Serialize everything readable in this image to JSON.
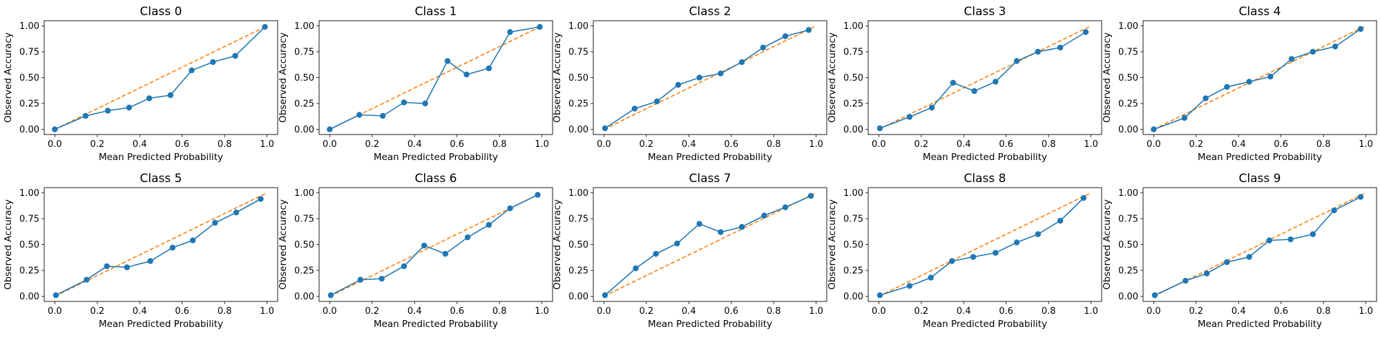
{
  "colors": {
    "series": "#1f77b4",
    "reference": "#ff7f0e",
    "axes": "#000000",
    "background": "#ffffff"
  },
  "chart_data": [
    {
      "type": "line",
      "title": "Class 0",
      "xlabel": "Mean Predicted Probability",
      "ylabel": "Observed Accuracy",
      "xlim": [
        -0.05,
        1.05
      ],
      "ylim": [
        -0.05,
        1.05
      ],
      "xticks": [
        "0.0",
        "0.2",
        "0.4",
        "0.6",
        "0.8",
        "1.0"
      ],
      "yticks": [
        "0.00",
        "0.25",
        "0.50",
        "0.75",
        "1.00"
      ],
      "reference_line": [
        [
          0,
          0
        ],
        [
          1,
          1
        ]
      ],
      "x": [
        0.0,
        0.145,
        0.25,
        0.35,
        0.445,
        0.545,
        0.645,
        0.745,
        0.85,
        0.99
      ],
      "y": [
        0.0,
        0.13,
        0.18,
        0.21,
        0.3,
        0.33,
        0.57,
        0.65,
        0.71,
        0.99
      ]
    },
    {
      "type": "line",
      "title": "Class 1",
      "xlabel": "Mean Predicted Probability",
      "ylabel": "Observed Accuracy",
      "xlim": [
        -0.05,
        1.05
      ],
      "ylim": [
        -0.05,
        1.05
      ],
      "xticks": [
        "0.0",
        "0.2",
        "0.4",
        "0.6",
        "0.8",
        "1.0"
      ],
      "yticks": [
        "0.00",
        "0.25",
        "0.50",
        "0.75",
        "1.00"
      ],
      "reference_line": [
        [
          0,
          0
        ],
        [
          1,
          1
        ]
      ],
      "x": [
        0.0,
        0.14,
        0.25,
        0.35,
        0.45,
        0.555,
        0.645,
        0.75,
        0.85,
        0.99
      ],
      "y": [
        0.0,
        0.14,
        0.13,
        0.26,
        0.25,
        0.66,
        0.53,
        0.59,
        0.94,
        0.99
      ]
    },
    {
      "type": "line",
      "title": "Class 2",
      "xlabel": "Mean Predicted Probability",
      "ylabel": "Observed Accuracy",
      "xlim": [
        -0.05,
        1.05
      ],
      "ylim": [
        -0.05,
        1.05
      ],
      "xticks": [
        "0.0",
        "0.2",
        "0.4",
        "0.6",
        "0.8",
        "1.0"
      ],
      "yticks": [
        "0.00",
        "0.25",
        "0.50",
        "0.75",
        "1.00"
      ],
      "reference_line": [
        [
          0,
          0
        ],
        [
          1,
          1
        ]
      ],
      "x": [
        0.005,
        0.145,
        0.25,
        0.35,
        0.45,
        0.55,
        0.65,
        0.75,
        0.855,
        0.965
      ],
      "y": [
        0.01,
        0.2,
        0.27,
        0.43,
        0.5,
        0.54,
        0.65,
        0.79,
        0.9,
        0.96
      ]
    },
    {
      "type": "line",
      "title": "Class 3",
      "xlabel": "Mean Predicted Probability",
      "ylabel": "Observed Accuracy",
      "xlim": [
        -0.05,
        1.05
      ],
      "ylim": [
        -0.05,
        1.05
      ],
      "xticks": [
        "0.0",
        "0.2",
        "0.4",
        "0.6",
        "0.8",
        "1.0"
      ],
      "yticks": [
        "0.00",
        "0.25",
        "0.50",
        "0.75",
        "1.00"
      ],
      "reference_line": [
        [
          0,
          0
        ],
        [
          1,
          1
        ]
      ],
      "x": [
        0.005,
        0.145,
        0.25,
        0.35,
        0.45,
        0.55,
        0.65,
        0.75,
        0.855,
        0.975
      ],
      "y": [
        0.01,
        0.12,
        0.21,
        0.45,
        0.37,
        0.46,
        0.66,
        0.75,
        0.79,
        0.94
      ]
    },
    {
      "type": "line",
      "title": "Class 4",
      "xlabel": "Mean Predicted Probability",
      "ylabel": "Observed Accuracy",
      "xlim": [
        -0.05,
        1.05
      ],
      "ylim": [
        -0.05,
        1.05
      ],
      "xticks": [
        "0.0",
        "0.2",
        "0.4",
        "0.6",
        "0.8",
        "1.0"
      ],
      "yticks": [
        "0.00",
        "0.25",
        "0.50",
        "0.75",
        "1.00"
      ],
      "reference_line": [
        [
          0,
          0
        ],
        [
          1,
          1
        ]
      ],
      "x": [
        0.0,
        0.145,
        0.245,
        0.345,
        0.45,
        0.55,
        0.65,
        0.75,
        0.855,
        0.975
      ],
      "y": [
        0.0,
        0.11,
        0.3,
        0.41,
        0.46,
        0.51,
        0.68,
        0.75,
        0.8,
        0.97
      ]
    },
    {
      "type": "line",
      "title": "Class 5",
      "xlabel": "Mean Predicted Probability",
      "ylabel": "Observed Accuracy",
      "xlim": [
        -0.05,
        1.05
      ],
      "ylim": [
        -0.05,
        1.05
      ],
      "xticks": [
        "0.0",
        "0.2",
        "0.4",
        "0.6",
        "0.8",
        "1.0"
      ],
      "yticks": [
        "0.00",
        "0.25",
        "0.50",
        "0.75",
        "1.00"
      ],
      "reference_line": [
        [
          0,
          0
        ],
        [
          1,
          1
        ]
      ],
      "x": [
        0.005,
        0.15,
        0.245,
        0.34,
        0.45,
        0.555,
        0.65,
        0.755,
        0.855,
        0.97
      ],
      "y": [
        0.01,
        0.16,
        0.29,
        0.28,
        0.34,
        0.47,
        0.54,
        0.71,
        0.81,
        0.94
      ]
    },
    {
      "type": "line",
      "title": "Class 6",
      "xlabel": "Mean Predicted Probability",
      "ylabel": "Observed Accuracy",
      "xlim": [
        -0.05,
        1.05
      ],
      "ylim": [
        -0.05,
        1.05
      ],
      "xticks": [
        "0.0",
        "0.2",
        "0.4",
        "0.6",
        "0.8",
        "1.0"
      ],
      "yticks": [
        "0.00",
        "0.25",
        "0.50",
        "0.75",
        "1.00"
      ],
      "reference_line": [
        [
          0,
          0
        ],
        [
          1,
          1
        ]
      ],
      "x": [
        0.005,
        0.145,
        0.245,
        0.35,
        0.445,
        0.545,
        0.65,
        0.75,
        0.85,
        0.98
      ],
      "y": [
        0.01,
        0.16,
        0.17,
        0.29,
        0.49,
        0.41,
        0.57,
        0.69,
        0.85,
        0.98
      ]
    },
    {
      "type": "line",
      "title": "Class 7",
      "xlabel": "Mean Predicted Probability",
      "ylabel": "Observed Accuracy",
      "xlim": [
        -0.05,
        1.05
      ],
      "ylim": [
        -0.05,
        1.05
      ],
      "xticks": [
        "0.0",
        "0.2",
        "0.4",
        "0.6",
        "0.8",
        "1.0"
      ],
      "yticks": [
        "0.00",
        "0.25",
        "0.50",
        "0.75",
        "1.00"
      ],
      "reference_line": [
        [
          0,
          0
        ],
        [
          1,
          1
        ]
      ],
      "x": [
        0.005,
        0.15,
        0.245,
        0.345,
        0.45,
        0.55,
        0.65,
        0.755,
        0.855,
        0.975
      ],
      "y": [
        0.01,
        0.27,
        0.41,
        0.51,
        0.7,
        0.62,
        0.67,
        0.78,
        0.86,
        0.97
      ]
    },
    {
      "type": "line",
      "title": "Class 8",
      "xlabel": "Mean Predicted Probability",
      "ylabel": "Observed Accuracy",
      "xlim": [
        -0.05,
        1.05
      ],
      "ylim": [
        -0.05,
        1.05
      ],
      "xticks": [
        "0.0",
        "0.2",
        "0.4",
        "0.6",
        "0.8",
        "1.0"
      ],
      "yticks": [
        "0.00",
        "0.25",
        "0.50",
        "0.75",
        "1.00"
      ],
      "reference_line": [
        [
          0,
          0
        ],
        [
          1,
          1
        ]
      ],
      "x": [
        0.005,
        0.145,
        0.245,
        0.345,
        0.445,
        0.55,
        0.65,
        0.75,
        0.855,
        0.965
      ],
      "y": [
        0.01,
        0.1,
        0.18,
        0.34,
        0.38,
        0.42,
        0.52,
        0.6,
        0.73,
        0.95
      ]
    },
    {
      "type": "line",
      "title": "Class 9",
      "xlabel": "Mean Predicted Probability",
      "ylabel": "Observed Accuracy",
      "xlim": [
        -0.05,
        1.05
      ],
      "ylim": [
        -0.05,
        1.05
      ],
      "xticks": [
        "0.0",
        "0.2",
        "0.4",
        "0.6",
        "0.8",
        "1.0"
      ],
      "yticks": [
        "0.00",
        "0.25",
        "0.50",
        "0.75",
        "1.00"
      ],
      "reference_line": [
        [
          0,
          0
        ],
        [
          1,
          1
        ]
      ],
      "x": [
        0.005,
        0.15,
        0.25,
        0.345,
        0.45,
        0.545,
        0.645,
        0.75,
        0.85,
        0.975
      ],
      "y": [
        0.01,
        0.15,
        0.22,
        0.33,
        0.38,
        0.54,
        0.55,
        0.6,
        0.83,
        0.96
      ]
    }
  ]
}
